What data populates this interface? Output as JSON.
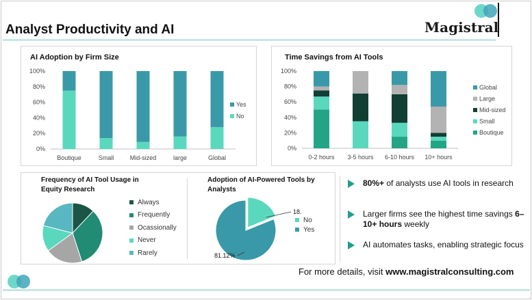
{
  "header": {
    "title": "Analyst Productivity and AI",
    "logo_text": "Magistral"
  },
  "colors": {
    "yes": "#3a99a8",
    "no": "#5ad8bd",
    "global": "#3a99a8",
    "large": "#b3b3b3",
    "mid_sized": "#113f34",
    "small": "#5ad8bd",
    "boutique": "#21a585",
    "always": "#1a5546",
    "frequently": "#218b73",
    "occasionally": "#a6a6a6",
    "never": "#5ad8bd",
    "rarely": "#58b7c1",
    "arrow": "#1f9e8c",
    "logo_teal": "#5fd3c3",
    "logo_blue": "#3fa6b8"
  },
  "chart_data": [
    {
      "type": "bar",
      "stacked": true,
      "title": "AI Adoption by Firm Size",
      "categories": [
        "Boutique",
        "Small",
        "Mid-sized",
        "large",
        "Global"
      ],
      "series": [
        {
          "name": "No",
          "values": [
            75,
            14,
            9,
            16,
            28
          ]
        },
        {
          "name": "Yes",
          "values": [
            25,
            86,
            91,
            84,
            72
          ]
        }
      ],
      "ylim": [
        0,
        100
      ],
      "yticks": [
        "0%",
        "20%",
        "40%",
        "60%",
        "80%",
        "100%"
      ],
      "legend": "right"
    },
    {
      "type": "bar",
      "stacked": true,
      "title": "Time Savings from AI Tools",
      "categories": [
        "0-2 hours",
        "3-5 hours",
        "6-10 hours",
        "10+ hours"
      ],
      "series": [
        {
          "name": "Boutique",
          "values": [
            50,
            0,
            15,
            10
          ]
        },
        {
          "name": "Small",
          "values": [
            17,
            35,
            18,
            5
          ]
        },
        {
          "name": "Mid-sized",
          "values": [
            8,
            36,
            37,
            5
          ]
        },
        {
          "name": "Large",
          "values": [
            5,
            29,
            12,
            34
          ]
        },
        {
          "name": "Global",
          "values": [
            20,
            0,
            18,
            46
          ]
        }
      ],
      "ylim": [
        0,
        100
      ],
      "yticks": [
        "0%",
        "20%",
        "40%",
        "60%",
        "80%",
        "100%"
      ],
      "legend": "right"
    },
    {
      "type": "pie",
      "title": "Frequency of AI Tool Usage in Equity Research",
      "labels": [
        "Always",
        "Frequently",
        "Ocassionally",
        "Never",
        "Rarely"
      ],
      "values": [
        12,
        33,
        20,
        14,
        21
      ],
      "legend": "right"
    },
    {
      "type": "pie",
      "title": "Adoption of AI-Powered Tools by Analysts",
      "labels": [
        "No",
        "Yes"
      ],
      "values": [
        18.88,
        81.12
      ],
      "data_labels": [
        "18.88%",
        "81.12%"
      ],
      "legend": "right"
    }
  ],
  "insights": [
    {
      "bold": "80%+",
      "text": " of analysts use AI tools in research"
    },
    {
      "text": "Larger firms see the highest time savings ",
      "bold": "6–10+ hours",
      "after": " weekly"
    },
    {
      "text": "AI automates tasks, enabling strategic focus"
    }
  ],
  "footer": {
    "prefix": "For more details, visit ",
    "url": "www.magistralconsulting.com"
  }
}
